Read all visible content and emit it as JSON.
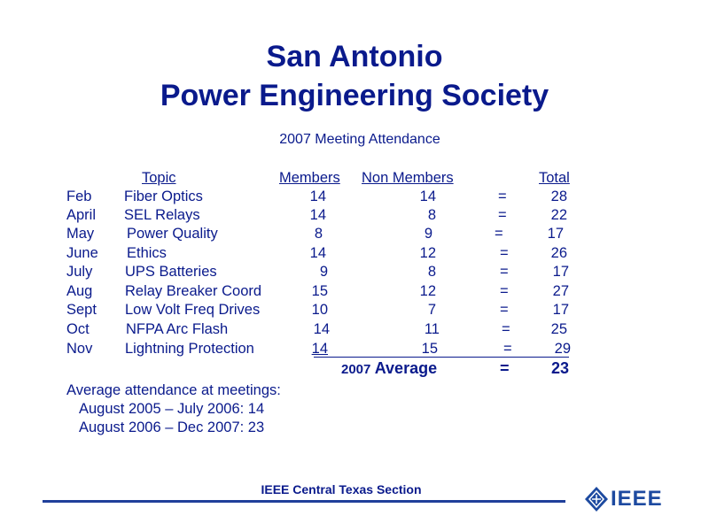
{
  "title_line1": "San Antonio",
  "title_line2": "Power Engineering Society",
  "subtitle": "2007 Meeting Attendance",
  "headers": {
    "topic": "Topic ",
    "members": "Members",
    "non_members": "Non Members",
    "total": "Total"
  },
  "rows": [
    {
      "month": "Feb",
      "topic": "Fiber Optics",
      "members": "14",
      "non_members": "14",
      "eq": "=",
      "total": "28"
    },
    {
      "month": "April",
      "topic": "SEL Relays",
      "members": "14",
      "non_members": "8",
      "eq": "=",
      "total": "22"
    },
    {
      "month": "May",
      "topic": "Power Quality",
      "members": "8",
      "non_members": "9",
      "eq": "=",
      "total": "17"
    },
    {
      "month": "June",
      "topic": "Ethics",
      "members": "14",
      "non_members": "12",
      "eq": "=",
      "total": "26"
    },
    {
      "month": "July",
      "topic": "UPS Batteries",
      "members": "9",
      "non_members": "8",
      "eq": "=",
      "total": "17"
    },
    {
      "month": "Aug",
      "topic": "Relay Breaker Coord",
      "members": "15",
      "non_members": "12",
      "eq": "=",
      "total": "27"
    },
    {
      "month": "Sept",
      "topic": "Low Volt Freq Drives",
      "members": "10",
      "non_members": "7",
      "eq": "=",
      "total": "17"
    },
    {
      "month": "Oct",
      "topic": "NFPA Arc Flash",
      "members": "14",
      "non_members": "11",
      "eq": "=",
      "total": "25"
    },
    {
      "month": "Nov",
      "topic": "Lightning Protection",
      "members": "14",
      "non_members": "15",
      "eq": "=",
      "total": "29"
    }
  ],
  "average": {
    "year": "2007",
    "label": "Average",
    "eq": "=",
    "value": "23"
  },
  "notes": {
    "heading": "Average attendance at meetings:",
    "line1": "August 2005 – July 2006: 14",
    "line2": "August 2006 – Dec 2007:  23"
  },
  "footer": {
    "section": "IEEE Central Texas Section",
    "logo_text": "IEEE"
  },
  "colors": {
    "text": "#0a1a8c",
    "rule": "#1f3f9a",
    "logo": "#1d4aa0"
  }
}
